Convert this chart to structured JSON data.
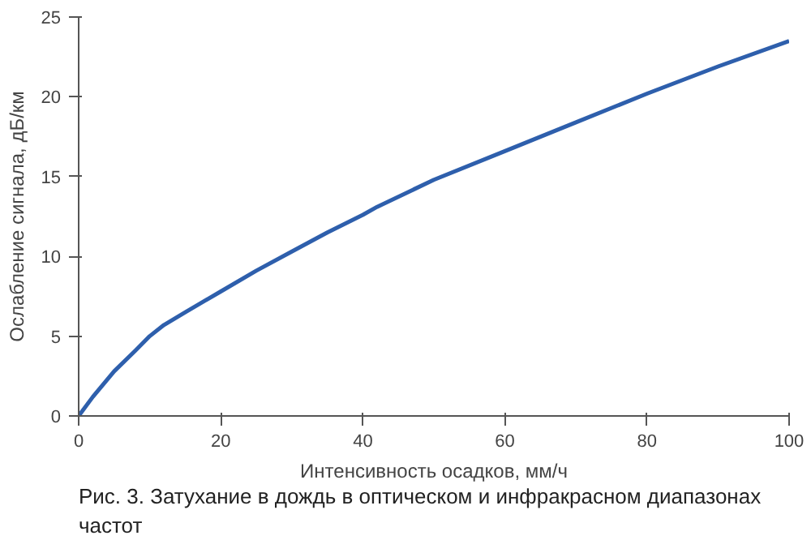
{
  "chart_data": {
    "type": "line",
    "xlabel": "Интенсивность осадков, мм/ч",
    "ylabel": "Ослабление сигнала, дБ/км",
    "x": [
      0,
      2,
      5,
      8,
      10,
      12,
      15,
      20,
      25,
      30,
      35,
      40,
      42,
      50,
      60,
      70,
      80,
      90,
      100
    ],
    "series": [
      {
        "color": "#2e5fac",
        "values": [
          0,
          1.2,
          2.8,
          4.1,
          5.0,
          5.7,
          6.5,
          7.8,
          9.1,
          10.3,
          11.5,
          12.6,
          13.1,
          14.8,
          16.6,
          18.4,
          20.2,
          21.9,
          23.5
        ]
      }
    ],
    "xlim": [
      0,
      100
    ],
    "ylim": [
      0,
      25
    ],
    "xticks": [
      0,
      20,
      40,
      60,
      80,
      100
    ],
    "yticks": [
      0,
      5,
      10,
      15,
      20,
      25
    ],
    "grid": false,
    "marker": "none",
    "line_style": "solid",
    "annotations": [
      "Рис. 3. Затухание в дождь в оптическом и инфракрасном диапазонах частот"
    ]
  }
}
